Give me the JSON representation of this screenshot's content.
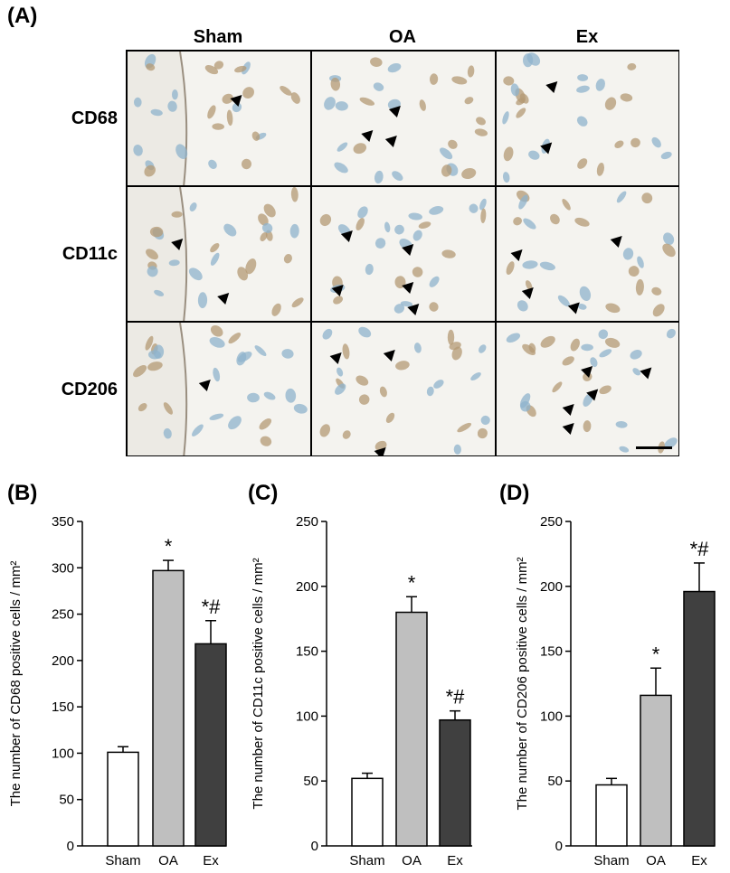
{
  "panel_labels": [
    "(A)",
    "(B)",
    "(C)",
    "(D)"
  ],
  "micrograph": {
    "columns": [
      "Sham",
      "OA",
      "Ex"
    ],
    "rows": [
      "CD68",
      "CD11c",
      "CD206"
    ]
  },
  "colors": {
    "sham_bar": "#ffffff",
    "oa_bar": "#bfbfbf",
    "ex_bar": "#404040",
    "tissue_bg": "#f4f3ef",
    "nucleus_blue": "#8fb3cc",
    "positive_brown": "#b49a74",
    "arrowhead": "#000000"
  },
  "chart_data": [
    {
      "type": "bar",
      "panel": "(B)",
      "categories": [
        "Sham",
        "OA",
        "Ex"
      ],
      "values": [
        101,
        297,
        218
      ],
      "errors": [
        6,
        11,
        25
      ],
      "annotations": [
        "",
        "*",
        "*#"
      ],
      "ylabel": "The number of CD68 positive cells / mm²",
      "ylim": [
        0,
        350
      ],
      "yticks": [
        0,
        50,
        100,
        150,
        200,
        250,
        300,
        350
      ],
      "grid": false
    },
    {
      "type": "bar",
      "panel": "(C)",
      "categories": [
        "Sham",
        "OA",
        "Ex"
      ],
      "values": [
        52,
        180,
        97
      ],
      "errors": [
        4,
        12,
        7
      ],
      "annotations": [
        "",
        "*",
        "*#"
      ],
      "ylabel": "The number of CD11c positive cells / mm²",
      "ylim": [
        0,
        250
      ],
      "yticks": [
        0,
        50,
        100,
        150,
        200,
        250
      ],
      "grid": false
    },
    {
      "type": "bar",
      "panel": "(D)",
      "categories": [
        "Sham",
        "OA",
        "Ex"
      ],
      "values": [
        47,
        116,
        196
      ],
      "errors": [
        5,
        21,
        22
      ],
      "annotations": [
        "",
        "*",
        "*#"
      ],
      "ylabel": "The number of CD206 positive cells / mm²",
      "ylim": [
        0,
        250
      ],
      "yticks": [
        0,
        50,
        100,
        150,
        200,
        250
      ],
      "grid": false
    }
  ]
}
